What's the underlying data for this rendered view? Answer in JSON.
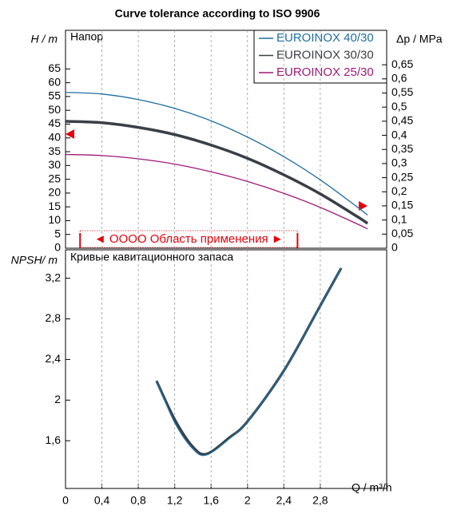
{
  "title": "Curve tolerance according to ISO 9906",
  "chart_data": [
    {
      "type": "line",
      "subtitle": "Напор",
      "y_label": "H / m",
      "y2_label": "Δp / MPa",
      "xlim": [
        0,
        3.53
      ],
      "ylim": [
        0,
        79
      ],
      "yticks": [
        0,
        5,
        10,
        15,
        20,
        25,
        30,
        35,
        40,
        45,
        50,
        55,
        60,
        65
      ],
      "y2lim": [
        0,
        0.772
      ],
      "y2ticks": [
        0,
        {
          "value": 0.05,
          "label": "0,05"
        },
        {
          "value": 0.1,
          "label": "0,1"
        },
        {
          "value": 0.15,
          "label": "0,15"
        },
        {
          "value": 0.2,
          "label": "0,2"
        },
        {
          "value": 0.25,
          "label": "0,25"
        },
        {
          "value": 0.3,
          "label": "0,3"
        },
        {
          "value": 0.35,
          "label": "0,35"
        },
        {
          "value": 0.4,
          "label": "0,4"
        },
        {
          "value": 0.45,
          "label": "0,45"
        },
        {
          "value": 0.5,
          "label": "0,5"
        },
        {
          "value": 0.55,
          "label": "0,55"
        },
        {
          "value": 0.6,
          "label": "0,6"
        },
        {
          "value": 0.65,
          "label": "0,65"
        }
      ],
      "grid": true,
      "legend": "top-right",
      "annotation": "◄ OOOO Область применения ►",
      "operating_range": [
        0.16,
        2.55
      ],
      "x": [
        0,
        0.4,
        0.8,
        1.2,
        1.6,
        2.0,
        2.4,
        2.8,
        3.2,
        3.32
      ],
      "series": [
        {
          "name": "EUROINOX 40/30",
          "color": "#1f6f9f",
          "values": [
            56.5,
            55.9,
            53.9,
            50.7,
            46.2,
            40.3,
            33.2,
            24.8,
            15.1,
            12.0
          ]
        },
        {
          "name": "EUROINOX 30/30",
          "color": "#3a3f47",
          "values": [
            46,
            45.5,
            43.8,
            41.2,
            37.4,
            32.6,
            26.6,
            19.7,
            11.6,
            9.0
          ]
        },
        {
          "name": "EUROINOX 25/30",
          "color": "#a0177a",
          "values": [
            34,
            33.6,
            32.4,
            30.5,
            27.7,
            24.2,
            19.9,
            14.8,
            8.9,
            7.0
          ]
        }
      ]
    },
    {
      "type": "line",
      "subtitle": "Кривые кавитационного запаса",
      "y_label": "NPSH/ m",
      "x_label": "Q / m³/h",
      "xlim": [
        0,
        3.53
      ],
      "xticks": [
        0,
        {
          "value": 0.4,
          "label": "0,4"
        },
        {
          "value": 0.8,
          "label": "0,8"
        },
        {
          "value": 1.2,
          "label": "1,2"
        },
        {
          "value": 1.6,
          "label": "1,6"
        },
        2,
        {
          "value": 2.4,
          "label": "2,4"
        },
        {
          "value": 2.8,
          "label": "2,8"
        }
      ],
      "ylim": [
        1.13,
        3.48
      ],
      "yticks": [
        {
          "value": 1.6,
          "label": "1,6"
        },
        2,
        {
          "value": 2.4,
          "label": "2,4"
        },
        {
          "value": 2.8,
          "label": "2,8"
        },
        {
          "value": 3.2,
          "label": "3,2"
        }
      ],
      "grid": true,
      "x": [
        1.0,
        1.2,
        1.4,
        1.55,
        1.8,
        2.0,
        2.4,
        2.8,
        3.03
      ],
      "series": [
        {
          "color": "#3a3f47",
          "values": [
            2.19,
            1.81,
            1.54,
            1.47,
            1.63,
            1.79,
            2.29,
            2.93,
            3.3
          ]
        },
        {
          "color": "#1f6f9f",
          "values": [
            2.19,
            1.78,
            1.52,
            1.46,
            1.62,
            1.79,
            2.29,
            2.93,
            3.3
          ]
        }
      ]
    }
  ]
}
